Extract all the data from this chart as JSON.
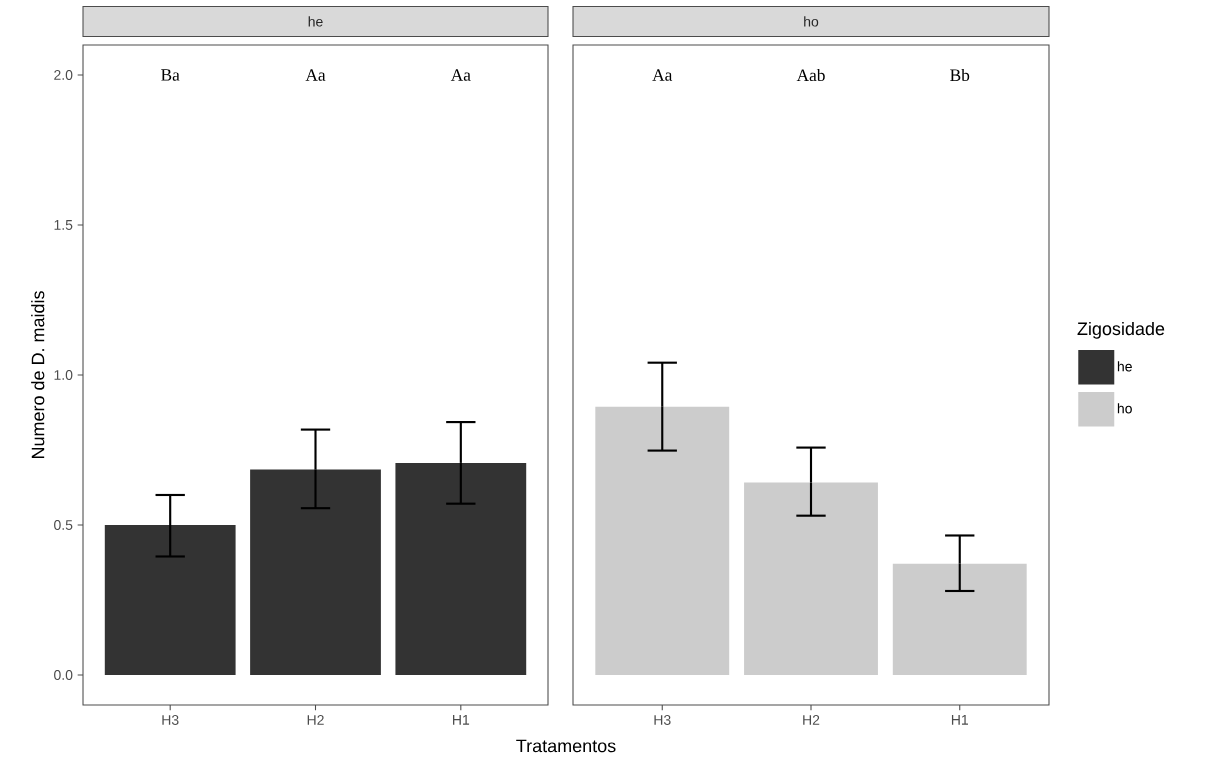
{
  "chart_data": [
    {
      "type": "bar",
      "title": "he",
      "ylabel": "Numero de D. maidis",
      "xlabel": "Tratamentos",
      "categories": [
        "H3",
        "H2",
        "H1"
      ],
      "series": [
        {
          "name": "he",
          "color": "#333333",
          "values": [
            0.5,
            0.685,
            0.707
          ],
          "errors": [
            [
              0.395,
              0.6
            ],
            [
              0.556,
              0.818
            ],
            [
              0.571,
              0.843
            ]
          ]
        }
      ],
      "ylim": [
        -0.1,
        2.1
      ],
      "yticks": [
        {
          "value": 0,
          "label": "0.0"
        },
        {
          "value": 0.5,
          "label": "0.5"
        },
        {
          "value": 1,
          "label": "1.0"
        },
        {
          "value": 1.5,
          "label": "1.5"
        },
        {
          "value": 2,
          "label": "2.0"
        }
      ],
      "annotations": [
        "Ba",
        "Aa",
        "Aa"
      ],
      "legend_title": "Zigosidade",
      "legend": "right",
      "grid": false
    },
    {
      "type": "bar",
      "title": "ho",
      "categories": [
        "H3",
        "H2",
        "H1"
      ],
      "series": [
        {
          "name": "ho",
          "color": "#cccccc",
          "values": [
            0.894,
            0.642,
            0.371
          ],
          "errors": [
            [
              0.748,
              1.041
            ],
            [
              0.531,
              0.758
            ],
            [
              0.28,
              0.465
            ]
          ]
        }
      ],
      "ylim": [
        -0.1,
        2.1
      ],
      "tick_labels": "x",
      "annotations": [
        "Aa",
        "Aab",
        "Bb"
      ],
      "legend": "right",
      "grid": false
    }
  ]
}
